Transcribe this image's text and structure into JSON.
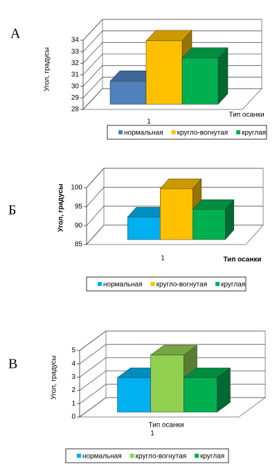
{
  "chart_data": [
    {
      "type": "bar",
      "label": "А",
      "categories": [
        "1"
      ],
      "series": [
        {
          "name": "нормальная",
          "color": "#4f81bd",
          "values": [
            30
          ]
        },
        {
          "name": "кругло-вогнутая",
          "color": "#ffc000",
          "values": [
            33.5
          ]
        },
        {
          "name": "круглая",
          "color": "#00b050",
          "values": [
            32
          ]
        }
      ],
      "ylim": [
        28,
        34
      ],
      "yticks": [
        28,
        29,
        30,
        31,
        32,
        33,
        34
      ],
      "x_label": "Тип осанки",
      "y_label": "Угол, градусы",
      "grid": true,
      "legend": "bottom"
    },
    {
      "type": "bar",
      "label": "Б",
      "categories": [
        "1"
      ],
      "series": [
        {
          "name": "нормальная",
          "color": "#00b0f0",
          "values": [
            91
          ]
        },
        {
          "name": "кругло-вогнутая",
          "color": "#ffc000",
          "values": [
            98.5
          ]
        },
        {
          "name": "круглая",
          "color": "#00b050",
          "values": [
            93
          ]
        }
      ],
      "ylim": [
        85,
        100
      ],
      "yticks": [
        85,
        90,
        95,
        100
      ],
      "x_label": "Тип осанки",
      "y_label": "Угол, градусы",
      "grid": true,
      "legend": "bottom"
    },
    {
      "type": "bar",
      "label": "В",
      "categories": [
        "1"
      ],
      "series": [
        {
          "name": "нормальная",
          "color": "#00b0f0",
          "values": [
            2.6
          ]
        },
        {
          "name": "кругло-вогнутая",
          "color": "#92d050",
          "values": [
            4.3
          ]
        },
        {
          "name": "круглая",
          "color": "#00b050",
          "values": [
            2.6
          ]
        }
      ],
      "ylim": [
        0,
        5
      ],
      "yticks": [
        0,
        1,
        2,
        3,
        4,
        5
      ],
      "x_label": "Тип осанки",
      "y_label": "Угол, градусы",
      "grid": true,
      "legend": "bottom"
    }
  ]
}
